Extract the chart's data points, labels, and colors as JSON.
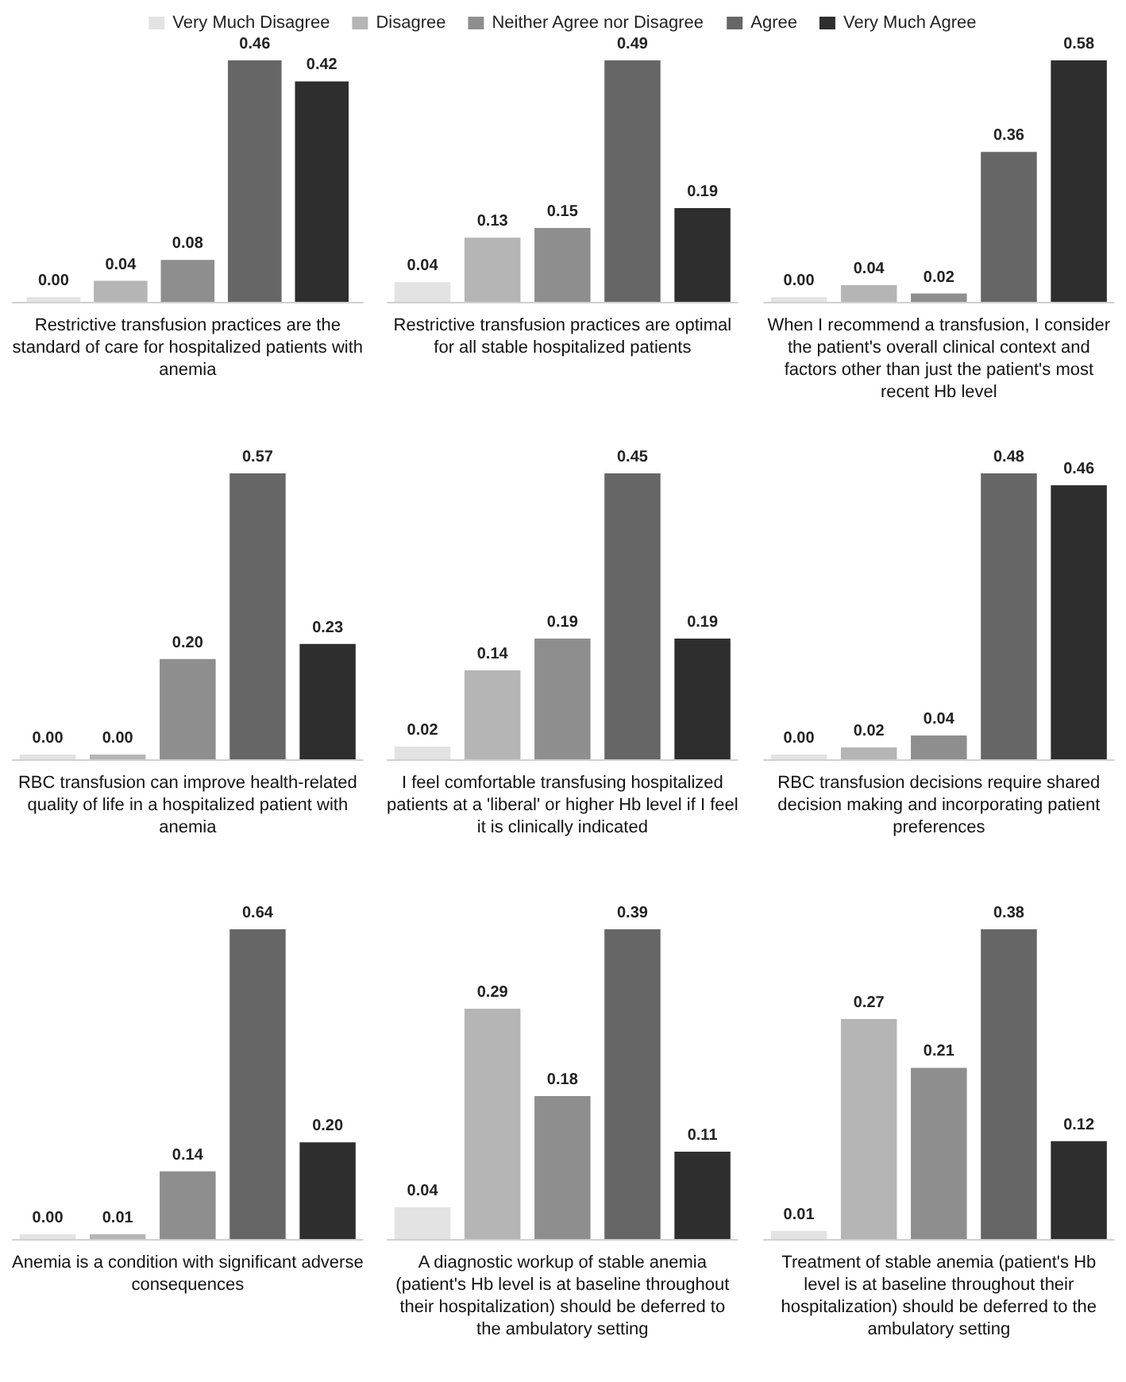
{
  "chart_data": [
    {
      "type": "bar",
      "xlabel": "Restrictive transfusion practices are the standard of care for hospitalized patients with anemia",
      "categories": [
        null
      ],
      "legend": "top",
      "tick_labels": false,
      "grid": false,
      "series": [
        {
          "name": "Very Much Disagree",
          "color": "#e3e3e3",
          "values": [
            0
          ],
          "value_labels": [
            "0.00"
          ]
        },
        {
          "name": "Disagree",
          "color": "#b5b5b5",
          "values": [
            0.04
          ],
          "value_labels": [
            "0.04"
          ]
        },
        {
          "name": "Neither Agree nor Disagree",
          "color": "#8e8e8e",
          "values": [
            0.08
          ],
          "value_labels": [
            "0.08"
          ]
        },
        {
          "name": "Agree",
          "color": "#666666",
          "values": [
            0.46
          ],
          "value_labels": [
            "0.46"
          ]
        },
        {
          "name": "Very Much Agree",
          "color": "#2e2e2e",
          "values": [
            0.42
          ],
          "value_labels": [
            "0.42"
          ]
        }
      ]
    },
    {
      "type": "bar",
      "xlabel": "Restrictive transfusion practices are optimal for all stable hospitalized patients",
      "categories": [
        null,
        null,
        null,
        null,
        null
      ],
      "colors": [
        "#e3e3e3",
        "#b5b5b5",
        "#8e8e8e",
        "#666666",
        "#2e2e2e"
      ],
      "values": [
        0.04,
        0.13,
        0.15,
        0.49,
        0.19
      ],
      "value_labels": [
        "0.04",
        "0.13",
        "0.15",
        "0.49",
        "0.19"
      ],
      "tick_labels": false,
      "grid": false
    },
    {
      "type": "bar",
      "xlabel": "When I recommend a transfusion, I consider the patient's overall clinical context and factors other than just the patient's most recent Hb level",
      "categories": [
        null,
        null,
        null,
        null,
        null
      ],
      "colors": [
        "#e3e3e3",
        "#b5b5b5",
        "#8e8e8e",
        "#666666",
        "#2e2e2e"
      ],
      "values": [
        0,
        0.04,
        0.02,
        0.36,
        0.58
      ],
      "value_labels": [
        "0.00",
        "0.04",
        "0.02",
        "0.36",
        "0.58"
      ],
      "tick_labels": false,
      "grid": false
    },
    {
      "type": "bar",
      "xlabel": "RBC transfusion can improve health-related quality of life in a hospitalized patient with anemia",
      "categories": [
        null,
        null,
        null,
        null,
        null
      ],
      "colors": [
        "#e3e3e3",
        "#b5b5b5",
        "#8e8e8e",
        "#666666",
        "#2e2e2e"
      ],
      "values": [
        0,
        0,
        0.2,
        0.57,
        0.23
      ],
      "value_labels": [
        "0.00",
        "0.00",
        "0.20",
        "0.57",
        "0.23"
      ],
      "tick_labels": false,
      "grid": false
    },
    {
      "type": "bar",
      "xlabel": "I feel comfortable transfusing hospitalized patients at a 'liberal' or higher Hb level if I feel it is clinically indicated",
      "categories": [
        null,
        null,
        null,
        null,
        null
      ],
      "colors": [
        "#e3e3e3",
        "#b5b5b5",
        "#8e8e8e",
        "#666666",
        "#2e2e2e"
      ],
      "values": [
        0.02,
        0.14,
        0.19,
        0.45,
        0.19
      ],
      "value_labels": [
        "0.02",
        "0.14",
        "0.19",
        "0.45",
        "0.19"
      ],
      "tick_labels": false,
      "grid": false
    },
    {
      "type": "bar",
      "xlabel": "RBC transfusion decisions require shared decision making and incorporating patient preferences",
      "categories": [
        null,
        null,
        null,
        null,
        null
      ],
      "colors": [
        "#e3e3e3",
        "#b5b5b5",
        "#8e8e8e",
        "#666666",
        "#2e2e2e"
      ],
      "values": [
        0,
        0.02,
        0.04,
        0.48,
        0.46
      ],
      "value_labels": [
        "0.00",
        "0.02",
        "0.04",
        "0.48",
        "0.46"
      ],
      "tick_labels": false,
      "grid": false
    },
    {
      "type": "bar",
      "xlabel": "Anemia is a condition with significant adverse consequences",
      "categories": [
        null,
        null,
        null,
        null,
        null
      ],
      "colors": [
        "#e3e3e3",
        "#b5b5b5",
        "#8e8e8e",
        "#666666",
        "#2e2e2e"
      ],
      "values": [
        0,
        0.01,
        0.14,
        0.64,
        0.2
      ],
      "value_labels": [
        "0.00",
        "0.01",
        "0.14",
        "0.64",
        "0.20"
      ],
      "tick_labels": false,
      "grid": false
    },
    {
      "type": "bar",
      "xlabel": "A diagnostic workup of stable anemia (patient's Hb level is at baseline throughout their hospitalization) should be deferred to the ambulatory setting",
      "categories": [
        null,
        null,
        null,
        null,
        null
      ],
      "colors": [
        "#e3e3e3",
        "#b5b5b5",
        "#8e8e8e",
        "#666666",
        "#2e2e2e"
      ],
      "values": [
        0.04,
        0.29,
        0.18,
        0.39,
        0.11
      ],
      "value_labels": [
        "0.04",
        "0.29",
        "0.18",
        "0.39",
        "0.11"
      ],
      "tick_labels": false,
      "grid": false
    },
    {
      "type": "bar",
      "xlabel": "Treatment of stable anemia (patient's Hb level is at baseline throughout their hospitalization) should be deferred to the ambulatory setting",
      "categories": [
        null,
        null,
        null,
        null,
        null
      ],
      "colors": [
        "#e3e3e3",
        "#b5b5b5",
        "#8e8e8e",
        "#666666",
        "#2e2e2e"
      ],
      "values": [
        0.01,
        0.27,
        0.21,
        0.38,
        0.12
      ],
      "value_labels": [
        "0.01",
        "0.27",
        "0.21",
        "0.38",
        "0.12"
      ],
      "tick_labels": false,
      "grid": false
    }
  ]
}
